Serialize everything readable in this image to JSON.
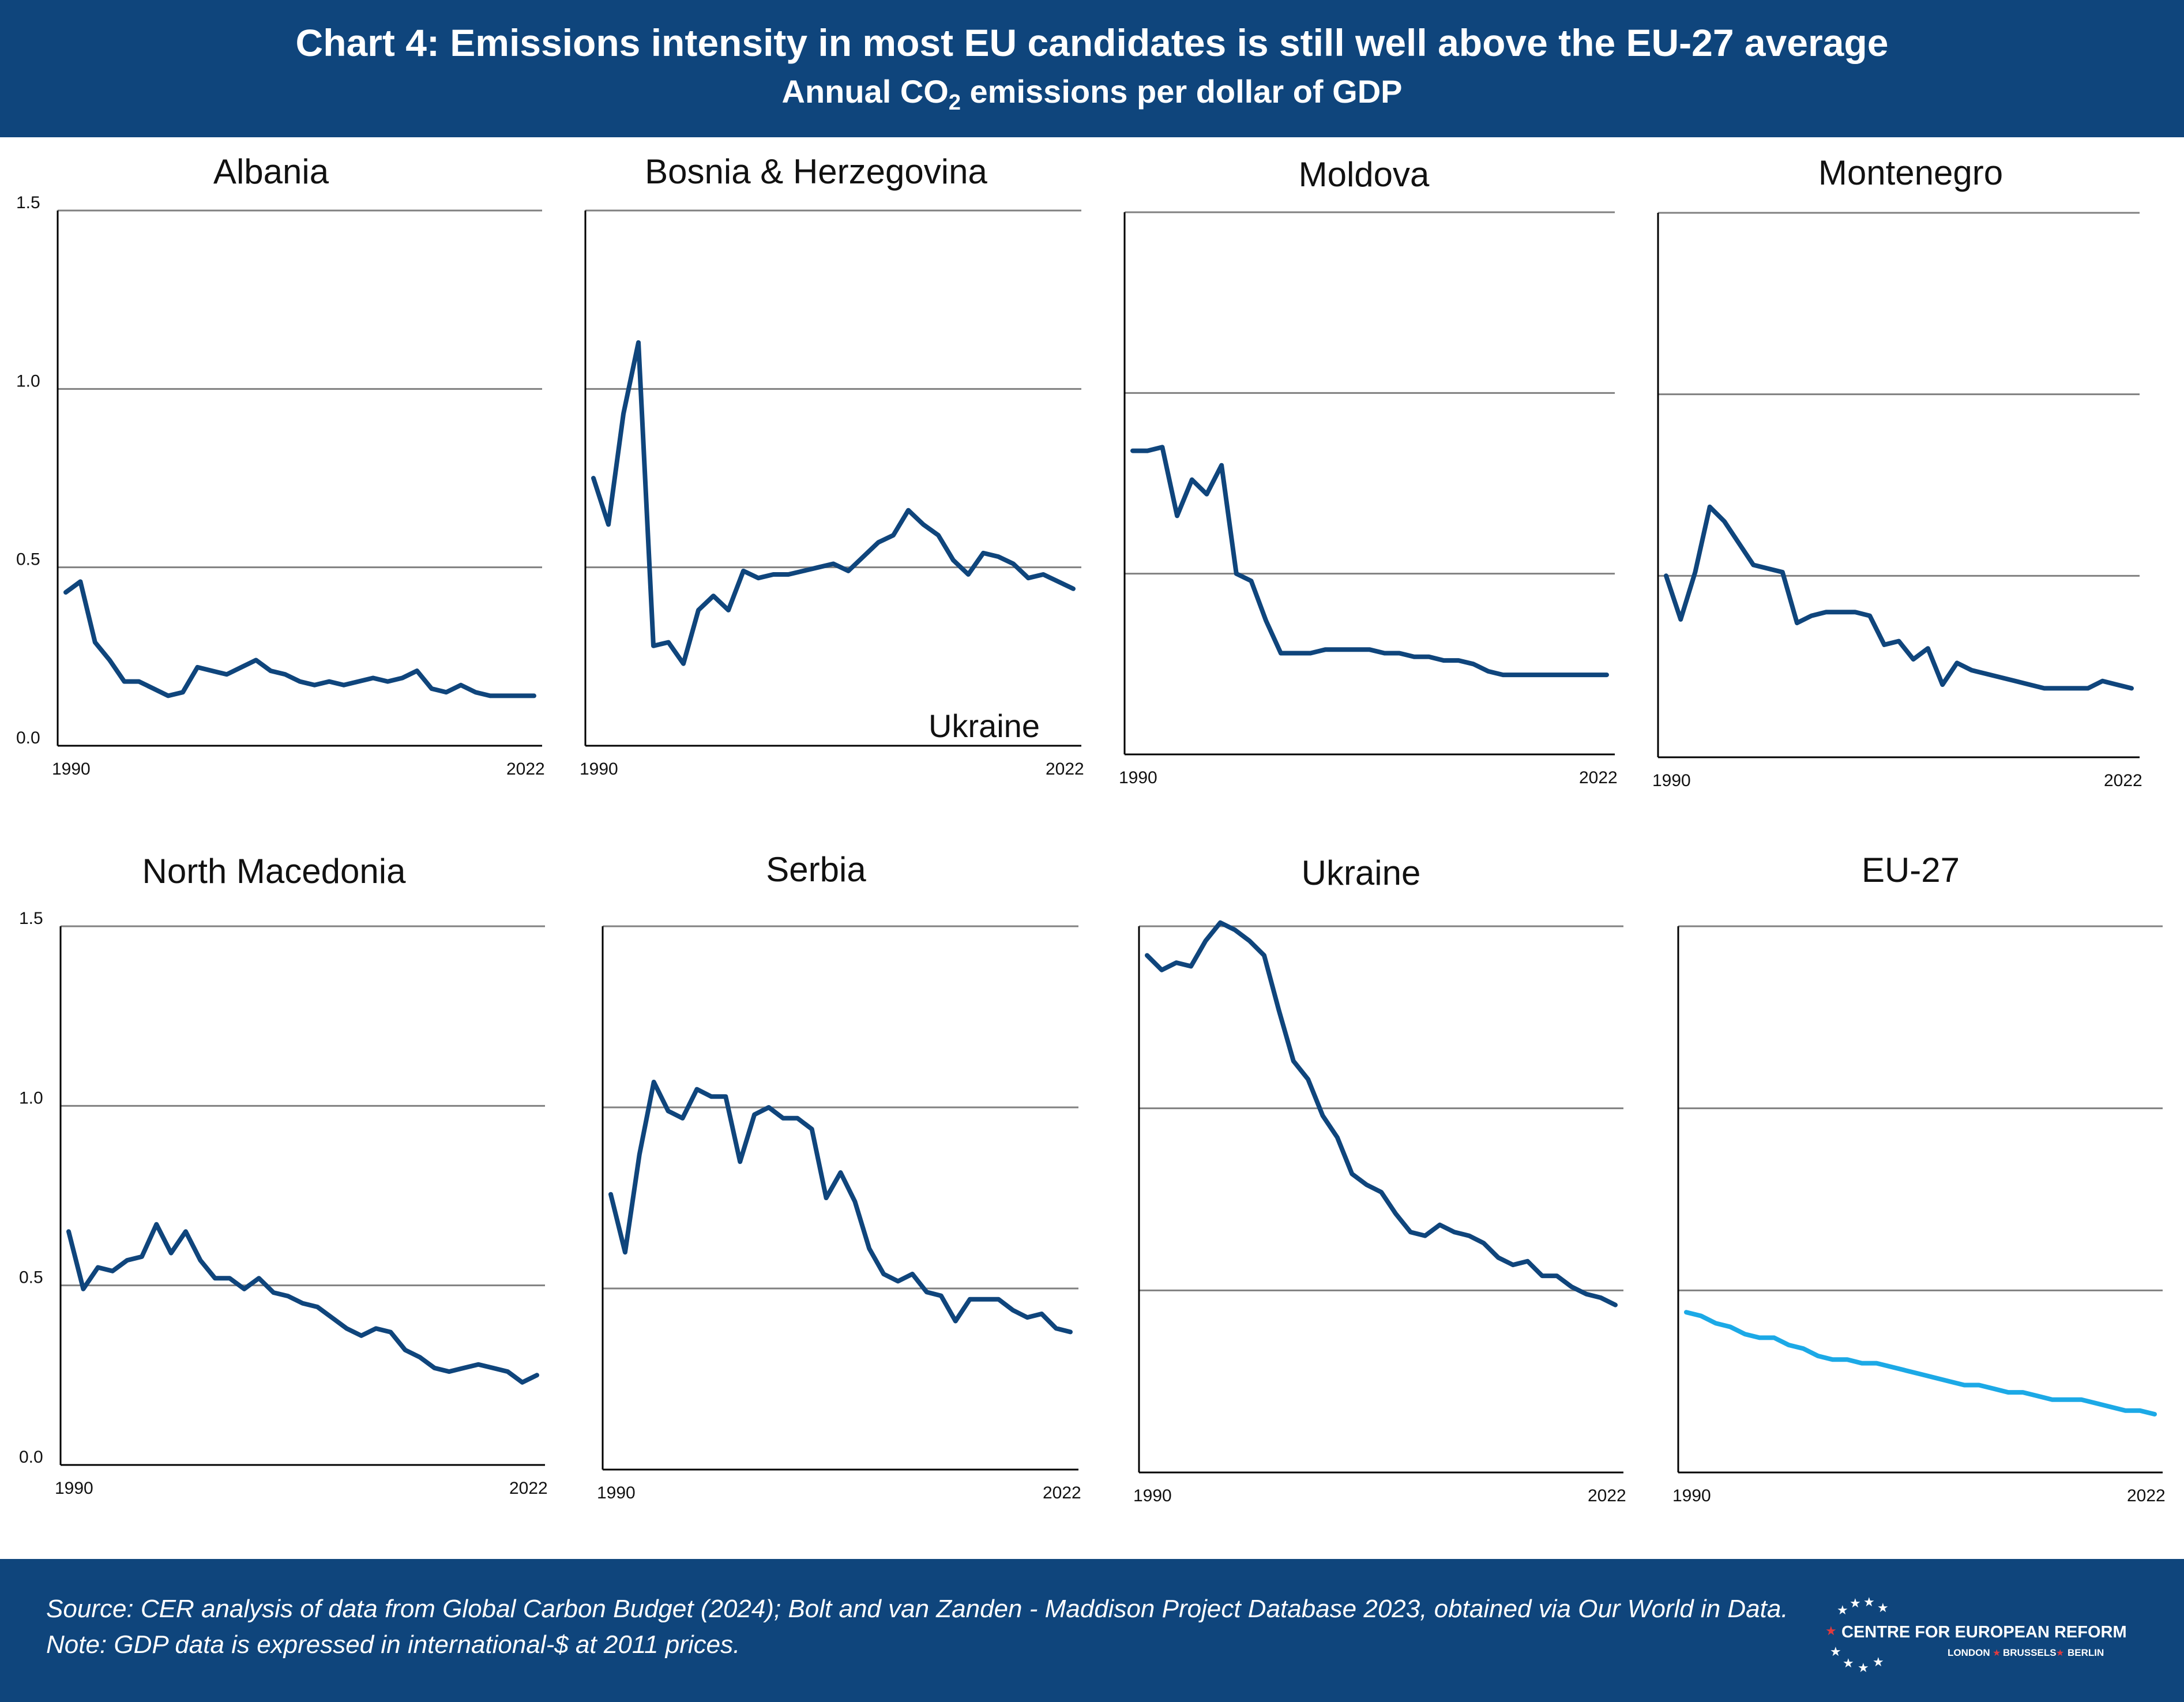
{
  "header": {
    "title": "Chart 4: Emissions intensity in most EU candidates is still well above the EU-27 average",
    "subtitle_main": "Annual CO",
    "subtitle_sub": "2",
    "subtitle_rest": " emissions per dollar of GDP"
  },
  "footer": {
    "source": "Source: CER analysis of data from Global Carbon Budget (2024); Bolt and van Zanden - Maddison Project Database 2023, obtained via Our World in Data.",
    "note": "Note: GDP data is expressed in international-$ at 2011 prices.",
    "logo_name": "CENTRE FOR EUROPEAN REFORM",
    "logo_city1": "LONDON",
    "logo_city2": "BRUSSELS",
    "logo_city3": "BERLIN"
  },
  "stray_label": "Ukraine",
  "colors": {
    "series": "#0f457c",
    "eu": "#1ca9e6",
    "grid": "#808080",
    "axis": "#000000"
  },
  "chart_data": [
    {
      "type": "line",
      "title": "Albania",
      "x_start": 1990,
      "x_end": 2022,
      "x_ticks": [
        "1990",
        "2022"
      ],
      "y_ticks": [
        "0.0",
        "0.5",
        "1.0",
        "1.5"
      ],
      "ylim": [
        0,
        1.5
      ],
      "grid": true,
      "values": [
        0.43,
        0.46,
        0.29,
        0.24,
        0.18,
        0.18,
        0.16,
        0.14,
        0.15,
        0.22,
        0.21,
        0.2,
        0.22,
        0.24,
        0.21,
        0.2,
        0.18,
        0.17,
        0.18,
        0.17,
        0.18,
        0.19,
        0.18,
        0.19,
        0.21,
        0.16,
        0.15,
        0.17,
        0.15,
        0.14,
        0.14,
        0.14,
        0.14
      ]
    },
    {
      "type": "line",
      "title": "Bosnia & Herzegovina",
      "x_start": 1990,
      "x_end": 2022,
      "x_ticks": [
        "1990",
        "2022"
      ],
      "y_ticks": [
        "0.0",
        "0.5",
        "1.0",
        "1.5"
      ],
      "ylim": [
        0,
        1.5
      ],
      "grid": true,
      "values": [
        0.75,
        0.62,
        0.93,
        1.13,
        0.28,
        0.29,
        0.23,
        0.38,
        0.42,
        0.38,
        0.49,
        0.47,
        0.48,
        0.48,
        0.49,
        0.5,
        0.51,
        0.49,
        0.53,
        0.57,
        0.59,
        0.66,
        0.62,
        0.59,
        0.52,
        0.48,
        0.54,
        0.53,
        0.51,
        0.47,
        0.48,
        0.46,
        0.44
      ]
    },
    {
      "type": "line",
      "title": "Moldova",
      "x_start": 1990,
      "x_end": 2022,
      "x_ticks": [
        "1990",
        "2022"
      ],
      "y_ticks": [
        "0.0",
        "0.5",
        "1.0",
        "1.5"
      ],
      "ylim": [
        0,
        1.5
      ],
      "grid": true,
      "values": [
        0.84,
        0.84,
        0.85,
        0.66,
        0.76,
        0.72,
        0.8,
        0.5,
        0.48,
        0.37,
        0.28,
        0.28,
        0.28,
        0.29,
        0.29,
        0.29,
        0.29,
        0.28,
        0.28,
        0.27,
        0.27,
        0.26,
        0.26,
        0.25,
        0.23,
        0.22,
        0.22,
        0.22,
        0.22,
        0.22,
        0.22,
        0.22,
        0.22
      ]
    },
    {
      "type": "line",
      "title": "Montenegro",
      "x_start": 1990,
      "x_end": 2022,
      "x_ticks": [
        "1990",
        "2022"
      ],
      "y_ticks": [
        "0.0",
        "0.5",
        "1.0",
        "1.5"
      ],
      "ylim": [
        0,
        1.5
      ],
      "grid": true,
      "values": [
        0.5,
        0.38,
        0.51,
        0.69,
        0.65,
        0.59,
        0.53,
        0.52,
        0.51,
        0.37,
        0.39,
        0.4,
        0.4,
        0.4,
        0.39,
        0.31,
        0.32,
        0.27,
        0.3,
        0.2,
        0.26,
        0.24,
        0.23,
        0.22,
        0.21,
        0.2,
        0.19,
        0.19,
        0.19,
        0.19,
        0.21,
        0.2,
        0.19
      ]
    },
    {
      "type": "line",
      "title": "North Macedonia",
      "x_start": 1990,
      "x_end": 2022,
      "x_ticks": [
        "1990",
        "2022"
      ],
      "y_ticks": [
        "0.0",
        "0.5",
        "1.0",
        "1.5"
      ],
      "ylim": [
        0,
        1.5
      ],
      "grid": true,
      "values": [
        0.65,
        0.49,
        0.55,
        0.54,
        0.57,
        0.58,
        0.67,
        0.59,
        0.65,
        0.57,
        0.52,
        0.52,
        0.49,
        0.52,
        0.48,
        0.47,
        0.45,
        0.44,
        0.41,
        0.38,
        0.36,
        0.38,
        0.37,
        0.32,
        0.3,
        0.27,
        0.26,
        0.27,
        0.28,
        0.27,
        0.26,
        0.23,
        0.25
      ]
    },
    {
      "type": "line",
      "title": "Serbia",
      "x_start": 1990,
      "x_end": 2022,
      "x_ticks": [
        "1990",
        "2022"
      ],
      "y_ticks": [
        "0.0",
        "0.5",
        "1.0",
        "1.5"
      ],
      "ylim": [
        0,
        1.5
      ],
      "grid": true,
      "values": [
        0.76,
        0.6,
        0.87,
        1.07,
        0.99,
        0.97,
        1.05,
        1.03,
        1.03,
        0.85,
        0.98,
        1.0,
        0.97,
        0.97,
        0.94,
        0.75,
        0.82,
        0.74,
        0.61,
        0.54,
        0.52,
        0.54,
        0.49,
        0.48,
        0.41,
        0.47,
        0.47,
        0.47,
        0.44,
        0.42,
        0.43,
        0.39,
        0.38
      ]
    },
    {
      "type": "line",
      "title": "Ukraine",
      "x_start": 1990,
      "x_end": 2022,
      "x_ticks": [
        "1990",
        "2022"
      ],
      "y_ticks": [
        "0.0",
        "0.5",
        "1.0",
        "1.5"
      ],
      "ylim": [
        0,
        1.5
      ],
      "grid": true,
      "values": [
        1.42,
        1.38,
        1.4,
        1.39,
        1.46,
        1.51,
        1.49,
        1.46,
        1.42,
        1.27,
        1.13,
        1.08,
        0.98,
        0.92,
        0.82,
        0.79,
        0.77,
        0.71,
        0.66,
        0.65,
        0.68,
        0.66,
        0.65,
        0.63,
        0.59,
        0.57,
        0.58,
        0.54,
        0.54,
        0.51,
        0.49,
        0.48,
        0.46
      ]
    },
    {
      "type": "line",
      "title": "EU-27",
      "x_start": 1990,
      "x_end": 2022,
      "x_ticks": [
        "1990",
        "2022"
      ],
      "y_ticks": [
        "0.0",
        "0.5",
        "1.0",
        "1.5"
      ],
      "ylim": [
        0,
        1.5
      ],
      "grid": true,
      "values": [
        0.44,
        0.43,
        0.41,
        0.4,
        0.38,
        0.37,
        0.37,
        0.35,
        0.34,
        0.32,
        0.31,
        0.31,
        0.3,
        0.3,
        0.29,
        0.28,
        0.27,
        0.26,
        0.25,
        0.24,
        0.24,
        0.23,
        0.22,
        0.22,
        0.21,
        0.2,
        0.2,
        0.2,
        0.19,
        0.18,
        0.17,
        0.17,
        0.16
      ]
    }
  ]
}
